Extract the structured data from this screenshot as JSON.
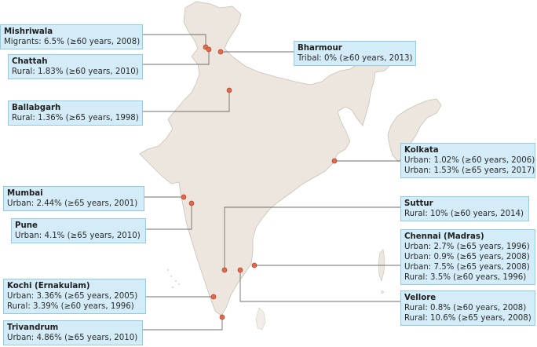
{
  "colors": {
    "land": "#ece6de",
    "border": "#c9c1b6",
    "marker": "#e1694e",
    "leader": "#6f6f6f",
    "box_fill": "#d3ecf7",
    "box_border": "#8fcbe5"
  },
  "sites": {
    "mishriwala": {
      "city": "Mishriwala",
      "lines": [
        "Migrants: 6.5% (≥60 years, 2008)"
      ]
    },
    "chattah": {
      "city": "Chattah",
      "lines": [
        "Rural: 1.83% (≥60 years, 2010)"
      ]
    },
    "bharmour": {
      "city": "Bharmour",
      "lines": [
        "Tribal: 0% (≥60 years, 2013)"
      ]
    },
    "ballabgarh": {
      "city": "Ballabgarh",
      "lines": [
        "Rural: 1.36% (≥65 years, 1998)"
      ]
    },
    "kolkata": {
      "city": "Kolkata",
      "lines": [
        "Urban: 1.02% (≥60 years, 2006)",
        "Urban: 1.53% (≥65 years, 2017)"
      ]
    },
    "mumbai": {
      "city": "Mumbai",
      "lines": [
        "Urban: 2.44% (≥65 years, 2001)"
      ]
    },
    "pune": {
      "city": "Pune",
      "lines": [
        "Urban: 4.1% (≥65 years, 2010)"
      ]
    },
    "suttur": {
      "city": "Suttur",
      "lines": [
        "Rural: 10% (≥60 years, 2014)"
      ]
    },
    "chennai": {
      "city": "Chennai (Madras)",
      "lines": [
        "Urban: 2.7% (≥65 years, 1996)",
        "Urban: 0.9% (≥65 years, 2008)",
        "Urban: 7.5% (≥65 years, 2008)",
        "Rural: 3.5% (≥60 years, 1996)"
      ]
    },
    "kochi": {
      "city": "Kochi (Ernakulam)",
      "lines": [
        "Urban: 3.36% (≥65 years, 2005)",
        "Rural: 3.39% (≥60 years, 1996)"
      ]
    },
    "vellore": {
      "city": "Vellore",
      "lines": [
        "Rural: 0.8% (≥60 years, 2008)",
        "Rural: 10.6% (≥65 years, 2008)"
      ]
    },
    "trivandrum": {
      "city": "Trivandrum",
      "lines": [
        "Urban: 4.86% (≥65 years, 2010)"
      ]
    }
  }
}
